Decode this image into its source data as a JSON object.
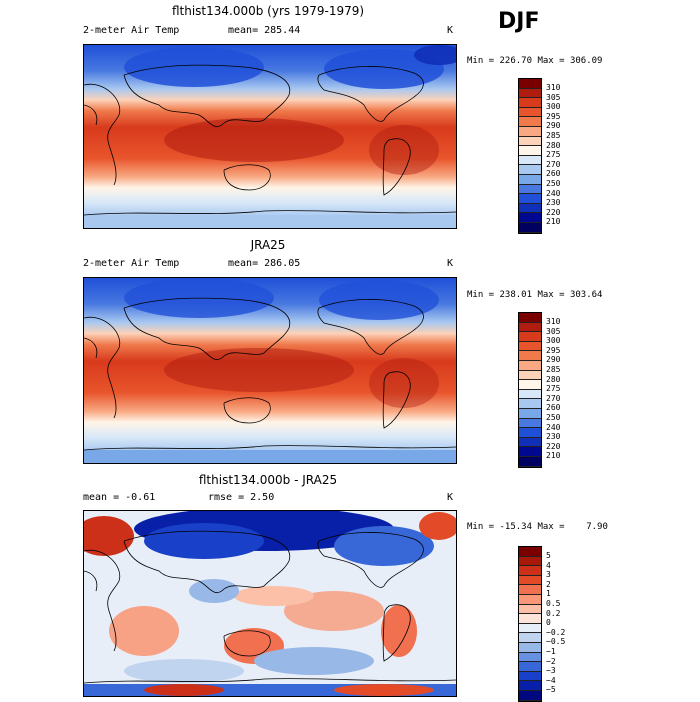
{
  "season": "DJF",
  "panels": [
    {
      "title": "flthist134.000b (yrs 1979-1979)",
      "left_label": "2-meter Air Temp",
      "mean_text": "mean= 285.44",
      "units": "K",
      "minmax": "Min = 226.70 Max = 306.09",
      "colorbar": {
        "labels": [
          "310",
          "305",
          "300",
          "295",
          "290",
          "285",
          "280",
          "275",
          "270",
          "260",
          "250",
          "240",
          "230",
          "220",
          "210"
        ],
        "colors": [
          "#7a0000",
          "#b01c10",
          "#d83a1c",
          "#e8552c",
          "#f07a4c",
          "#f8a882",
          "#fcd2b8",
          "#fff5e8",
          "#d8e8f8",
          "#a8c8f0",
          "#78a8e8",
          "#4878e0",
          "#2050d8",
          "#1030b8",
          "#000890",
          "#000060"
        ]
      }
    },
    {
      "title": "JRA25",
      "left_label": "2-meter Air Temp",
      "mean_text": "mean= 286.05",
      "units": "K",
      "minmax": "Min = 238.01 Max = 303.64",
      "colorbar": {
        "labels": [
          "310",
          "305",
          "300",
          "295",
          "290",
          "285",
          "280",
          "275",
          "270",
          "260",
          "250",
          "240",
          "230",
          "220",
          "210"
        ],
        "colors": [
          "#7a0000",
          "#b01c10",
          "#d83a1c",
          "#e8552c",
          "#f07a4c",
          "#f8a882",
          "#fcd2b8",
          "#fff5e8",
          "#d8e8f8",
          "#a8c8f0",
          "#78a8e8",
          "#4878e0",
          "#2050d8",
          "#1030b8",
          "#000890",
          "#000060"
        ]
      }
    },
    {
      "title": "flthist134.000b - JRA25",
      "left_label": "mean =   -0.61",
      "mean_text": "rmse =    2.50",
      "units": "K",
      "minmax": "Min = -15.34 Max =    7.90",
      "colorbar": {
        "labels": [
          "5",
          "4",
          "3",
          "2",
          "1",
          "0.5",
          "0.2",
          "0",
          "−0.2",
          "−0.5",
          "−1",
          "−2",
          "−3",
          "−4",
          "−5"
        ],
        "colors": [
          "#7a0000",
          "#a81808",
          "#cc3018",
          "#e24a28",
          "#f07050",
          "#f89878",
          "#fcc0a8",
          "#fde4d8",
          "#e8eef8",
          "#c0d4f0",
          "#98b8e8",
          "#6890e0",
          "#3868d8",
          "#1840c8",
          "#0820a8",
          "#000880"
        ]
      }
    }
  ]
}
